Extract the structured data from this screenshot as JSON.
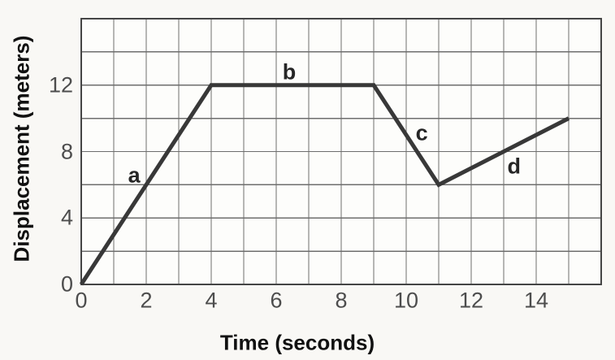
{
  "chart": {
    "y_axis_title": "Displacement (meters)",
    "x_axis_title": "Time (seconds)"
  },
  "colors": {
    "page_background": "#f9f8f5",
    "plot_background": "#fdfdfb",
    "gridline": "#6e6e6e",
    "border": "#454545",
    "tick_label": "#4d4d4d",
    "data_line": "#383838",
    "segment_label": "#262626"
  },
  "chart_data": {
    "type": "line",
    "title": "",
    "xlabel": "Time (seconds)",
    "ylabel": "Displacement (meters)",
    "xlim": [
      0,
      16
    ],
    "ylim": [
      0,
      16
    ],
    "x_grid_step": 1,
    "y_grid_step": 2,
    "x_ticks": [
      0,
      2,
      4,
      6,
      8,
      10,
      12,
      14
    ],
    "y_ticks": [
      0,
      4,
      8,
      12
    ],
    "grid": true,
    "legend": false,
    "series": [
      {
        "name": "displacement",
        "points": [
          [
            0,
            0
          ],
          [
            4,
            12
          ],
          [
            9,
            12
          ],
          [
            11,
            6
          ],
          [
            15,
            10
          ]
        ],
        "color": "#383838",
        "stroke_width": 5
      }
    ],
    "segment_labels": [
      {
        "text": "a",
        "x": 1.63,
        "y": 6.55,
        "describes": "rising segment (0,0)-(4,12)"
      },
      {
        "text": "b",
        "x": 6.4,
        "y": 12.77,
        "describes": "flat segment (4,12)-(9,12)"
      },
      {
        "text": "c",
        "x": 10.48,
        "y": 9.1,
        "describes": "falling segment (9,12)-(11,6)"
      },
      {
        "text": "d",
        "x": 13.32,
        "y": 7.09,
        "describes": "rising segment (11,6)-(15,10)"
      }
    ]
  }
}
